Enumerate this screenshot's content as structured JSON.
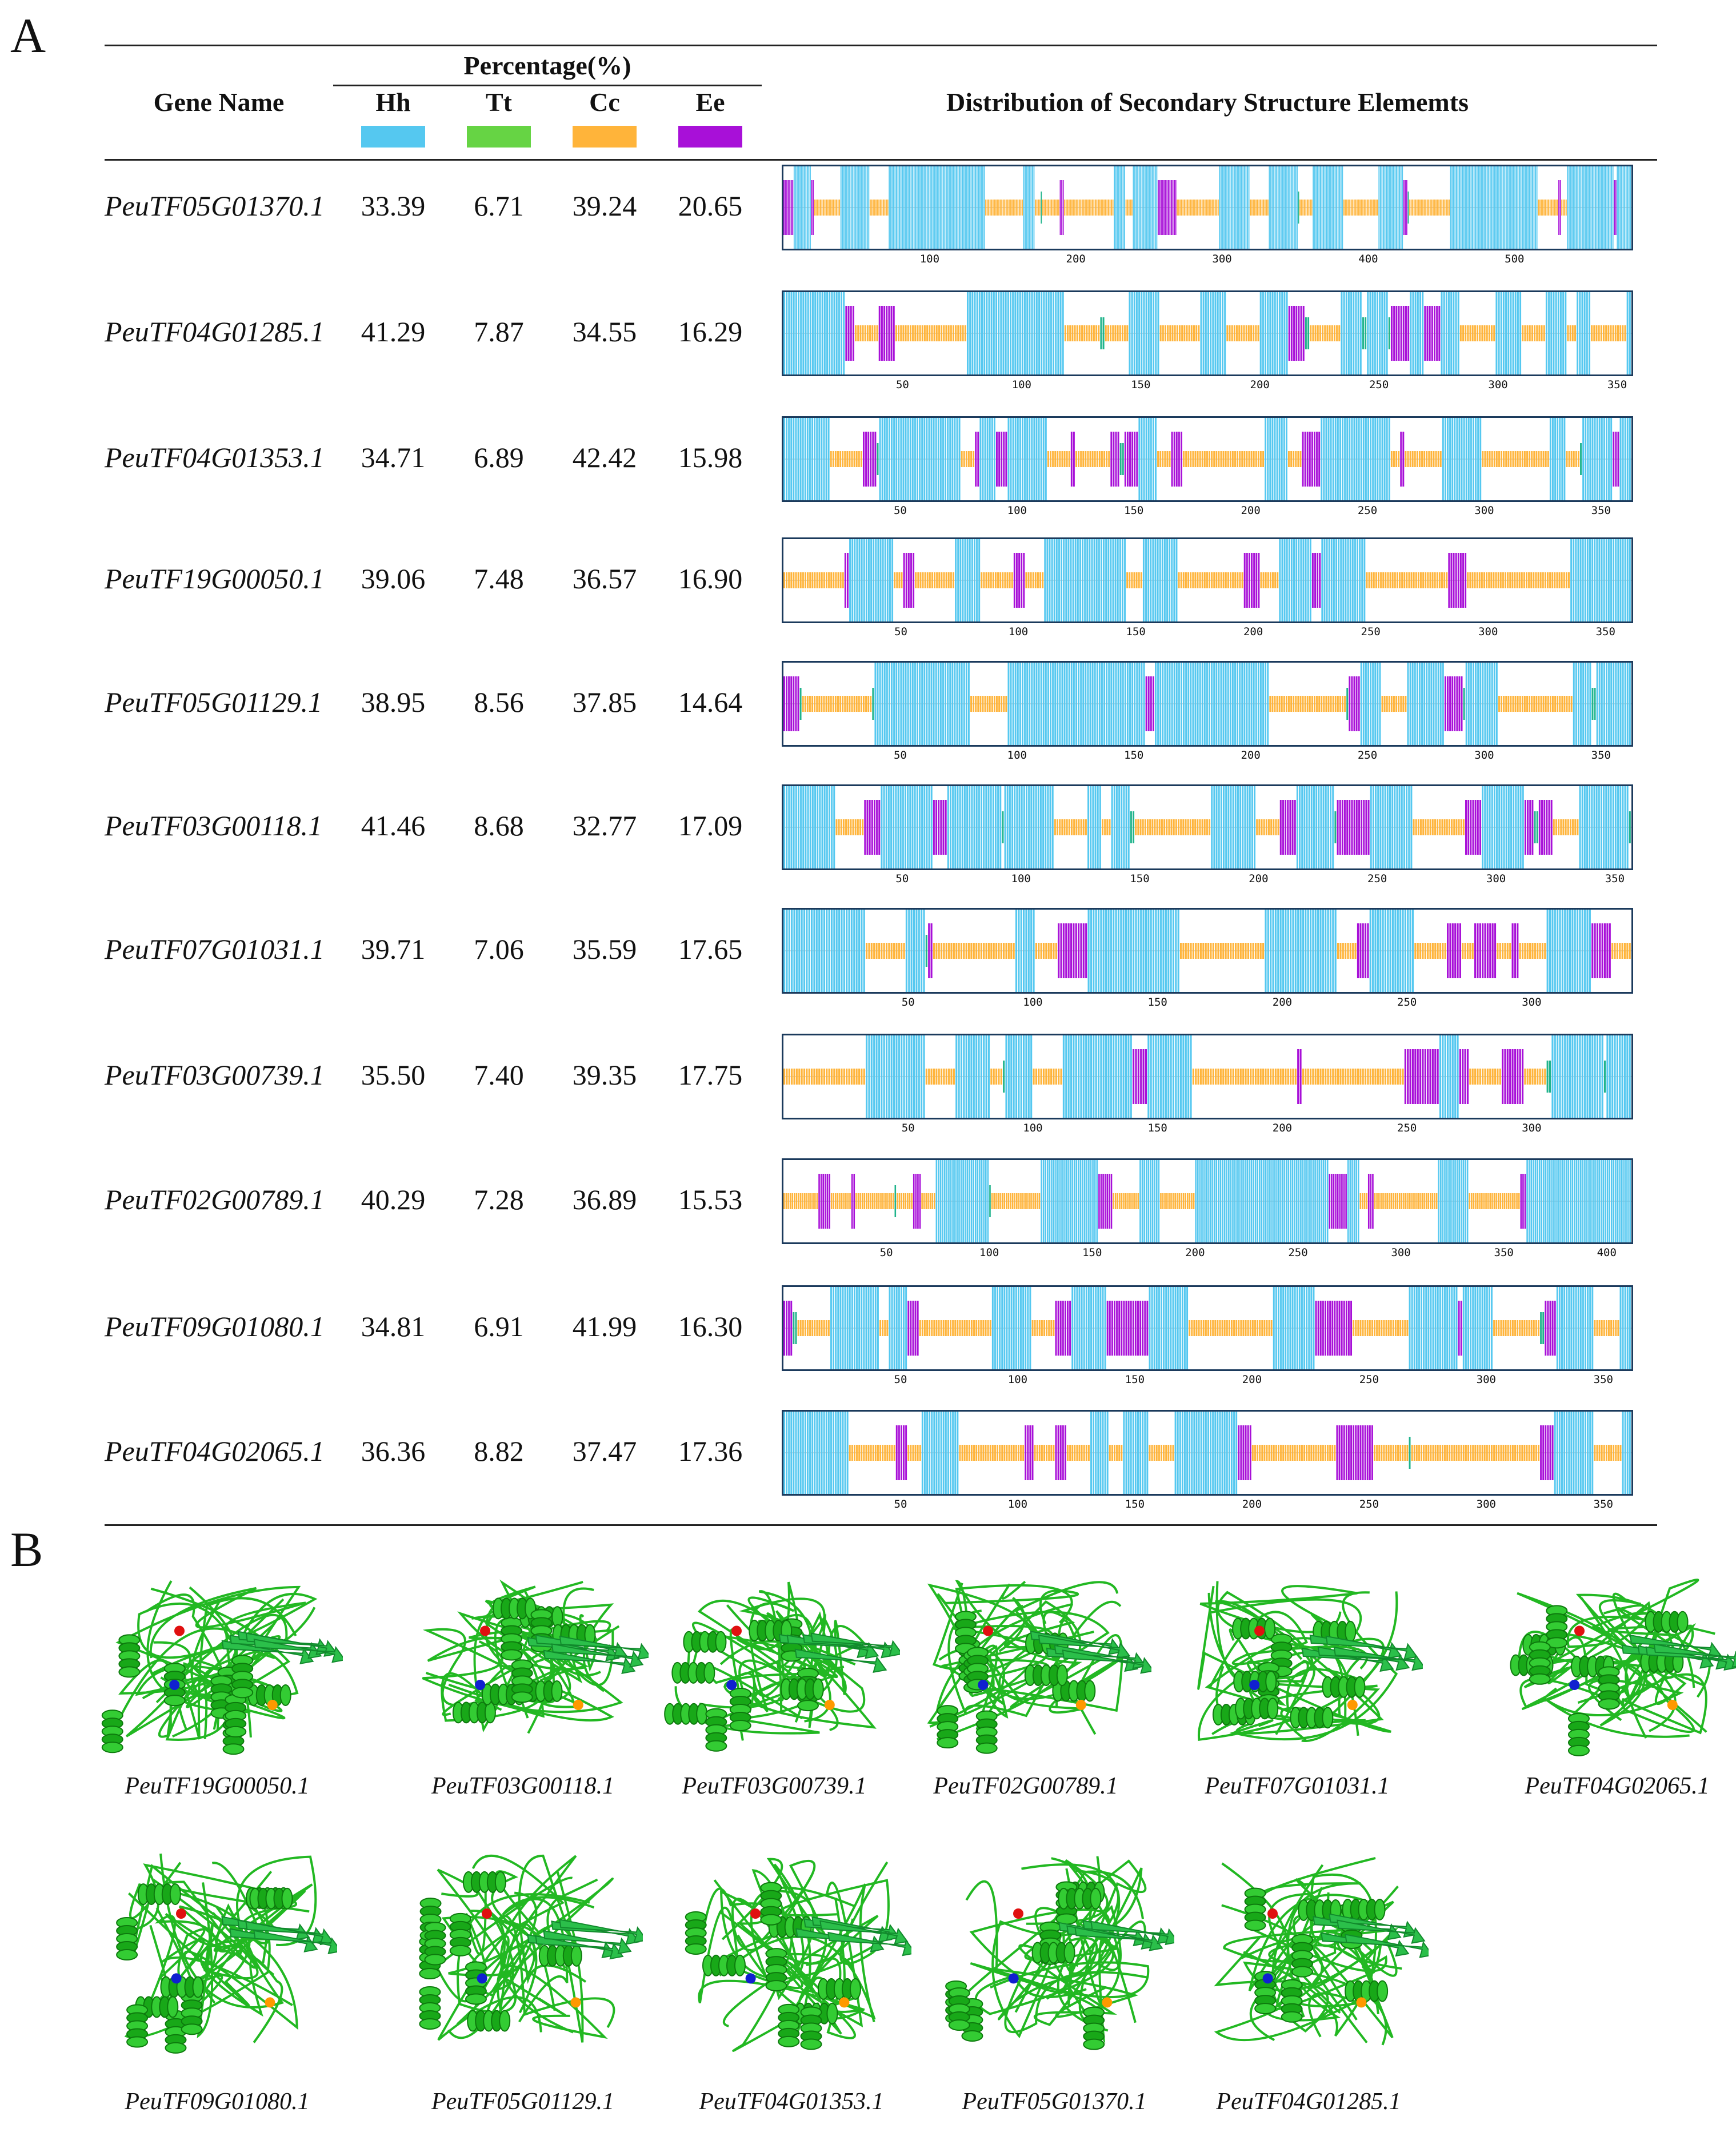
{
  "panel_a_label": "A",
  "panel_b_label": "B",
  "table": {
    "gene_header": "Gene Name",
    "percentage_header": "Percentage(%)",
    "distribution_header": "Distribution of Secondary Structure Elememts",
    "legend": [
      {
        "label": "Hh",
        "color": "#55c8f0"
      },
      {
        "label": "Tt",
        "color": "#66d444"
      },
      {
        "label": "Cc",
        "color": "#ffb43a"
      },
      {
        "label": "Ee",
        "color": "#a810d8"
      }
    ],
    "rows": [
      {
        "gene": "PeuTF05G01370.1",
        "hh": "33.39",
        "tt": "6.71",
        "cc": "39.24",
        "ee": "20.65",
        "length": 580,
        "ticks": [
          "100",
          "200",
          "300",
          "400",
          "500"
        ]
      },
      {
        "gene": "PeuTF04G01285.1",
        "hh": "41.29",
        "tt": "7.87",
        "cc": "34.55",
        "ee": "16.29",
        "length": 356,
        "ticks": [
          "50",
          "100",
          "150",
          "200",
          "250",
          "300",
          "350"
        ]
      },
      {
        "gene": "PeuTF04G01353.1",
        "hh": "34.71",
        "tt": "6.89",
        "cc": "42.42",
        "ee": "15.98",
        "length": 363,
        "ticks": [
          "50",
          "100",
          "150",
          "200",
          "250",
          "300",
          "350"
        ]
      },
      {
        "gene": "PeuTF19G00050.1",
        "hh": "39.06",
        "tt": "7.48",
        "cc": "36.57",
        "ee": "16.90",
        "length": 361,
        "ticks": [
          "50",
          "100",
          "150",
          "200",
          "250",
          "300",
          "350"
        ]
      },
      {
        "gene": "PeuTF05G01129.1",
        "hh": "38.95",
        "tt": "8.56",
        "cc": "37.85",
        "ee": "14.64",
        "length": 363,
        "ticks": [
          "50",
          "100",
          "150",
          "200",
          "250",
          "300",
          "350"
        ]
      },
      {
        "gene": "PeuTF03G00118.1",
        "hh": "41.46",
        "tt": "8.68",
        "cc": "32.77",
        "ee": "17.09",
        "length": 357,
        "ticks": [
          "50",
          "100",
          "150",
          "200",
          "250",
          "300",
          "350"
        ]
      },
      {
        "gene": "PeuTF07G01031.1",
        "hh": "39.71",
        "tt": "7.06",
        "cc": "35.59",
        "ee": "17.65",
        "length": 340,
        "ticks": [
          "50",
          "100",
          "150",
          "200",
          "250",
          "300"
        ]
      },
      {
        "gene": "PeuTF03G00739.1",
        "hh": "35.50",
        "tt": "7.40",
        "cc": "39.35",
        "ee": "17.75",
        "length": 340,
        "ticks": [
          "50",
          "100",
          "150",
          "200",
          "250",
          "300"
        ]
      },
      {
        "gene": "PeuTF02G00789.1",
        "hh": "40.29",
        "tt": "7.28",
        "cc": "36.89",
        "ee": "15.53",
        "length": 412,
        "ticks": [
          "50",
          "100",
          "150",
          "200",
          "250",
          "300",
          "350",
          "400"
        ]
      },
      {
        "gene": "PeuTF09G01080.1",
        "hh": "34.81",
        "tt": "6.91",
        "cc": "41.99",
        "ee": "16.30",
        "length": 362,
        "ticks": [
          "50",
          "100",
          "150",
          "200",
          "250",
          "300",
          "350"
        ]
      },
      {
        "gene": "PeuTF04G02065.1",
        "hh": "36.36",
        "tt": "8.82",
        "cc": "37.47",
        "ee": "17.36",
        "length": 362,
        "ticks": [
          "50",
          "100",
          "150",
          "200",
          "250",
          "300",
          "350"
        ]
      }
    ]
  },
  "structures": {
    "row1": [
      "PeuTF19G00050.1",
      "PeuTF03G00118.1",
      "PeuTF03G00739.1",
      "PeuTF02G00789.1",
      "PeuTF07G01031.1",
      "PeuTF04G02065.1"
    ],
    "row2": [
      "PeuTF09G01080.1",
      "PeuTF05G01129.1",
      "PeuTF04G01353.1",
      "PeuTF05G01370.1",
      "PeuTF04G01285.1"
    ]
  }
}
